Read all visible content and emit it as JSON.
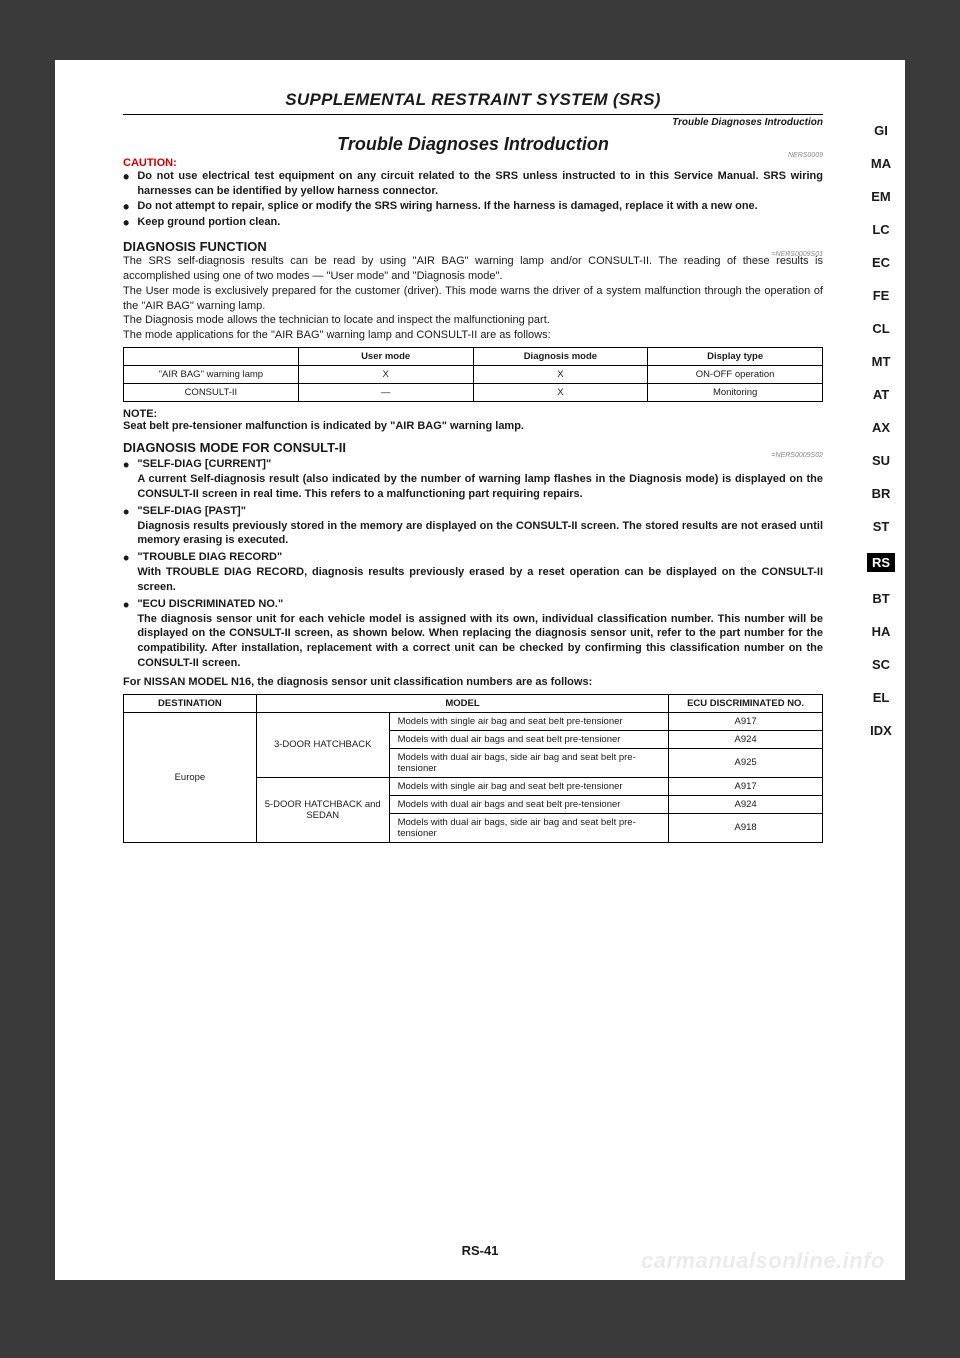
{
  "running_head": "SUPPLEMENTAL RESTRAINT SYSTEM (SRS)",
  "subhead": "Trouble Diagnoses Introduction",
  "section_title": "Trouble Diagnoses Introduction",
  "section_code": "NERS0009",
  "caution_label": "CAUTION:",
  "caution_bullets": [
    "Do not use electrical test equipment on any circuit related to the SRS unless instructed to in this Service Manual. SRS wiring harnesses can be identified by yellow harness connector.",
    "Do not attempt to repair, splice or modify the SRS wiring harness. If the harness is damaged, replace it with a new one.",
    "Keep ground portion clean."
  ],
  "diag_fn_head": "DIAGNOSIS FUNCTION",
  "diag_fn_code": "=NERS0009S01",
  "diag_fn_paras": [
    "The SRS self-diagnosis results can be read by using \"AIR BAG\" warning lamp and/or CONSULT-II. The reading of these results is accomplished using one of two modes — \"User mode\" and \"Diagnosis mode\".",
    "The User mode is exclusively prepared for the customer (driver). This mode warns the driver of a system malfunction through the operation of the \"AIR BAG\" warning lamp.",
    "The Diagnosis mode allows the technician to locate and inspect the malfunctioning part.",
    "The mode applications for the \"AIR BAG\" warning lamp and CONSULT-II are as follows:"
  ],
  "table1": {
    "headers": [
      "",
      "User mode",
      "Diagnosis mode",
      "Display type"
    ],
    "rows": [
      [
        "\"AIR BAG\" warning lamp",
        "X",
        "X",
        "ON-OFF operation"
      ],
      [
        "CONSULT-II",
        "—",
        "X",
        "Monitoring"
      ]
    ],
    "col_widths": [
      "25%",
      "25%",
      "25%",
      "25%"
    ]
  },
  "note_label": "NOTE:",
  "note_text": "Seat belt pre-tensioner malfunction is indicated by \"AIR BAG\" warning lamp.",
  "diag_mode_head": "DIAGNOSIS MODE FOR CONSULT-II",
  "diag_mode_code": "=NERS0009S02",
  "diag_items": [
    {
      "title": "\"SELF-DIAG [CURRENT]\"",
      "body": "A current Self-diagnosis result (also indicated by the number of warning lamp flashes in the Diagnosis mode) is displayed on the CONSULT-II screen in real time. This refers to a malfunctioning part requiring repairs."
    },
    {
      "title": "\"SELF-DIAG [PAST]\"",
      "body": "Diagnosis results previously stored in the memory are displayed on the CONSULT-II screen. The stored results are not erased until memory erasing is executed."
    },
    {
      "title": "\"TROUBLE DIAG RECORD\"",
      "body": "With TROUBLE DIAG RECORD, diagnosis results previously erased by a reset operation can be displayed on the CONSULT-II screen."
    },
    {
      "title": "\"ECU DISCRIMINATED NO.\"",
      "body": "The diagnosis sensor unit for each vehicle model is assigned with its own, individual classification number. This number will be displayed on the CONSULT-II screen, as shown below. When replacing the diagnosis sensor unit, refer to the part number for the compatibility. After installation, replacement with a correct unit can be checked by confirming this classification number on the CONSULT-II screen."
    }
  ],
  "follow_line": "For NISSAN MODEL N16, the diagnosis sensor unit classification numbers are as follows:",
  "table2": {
    "headers": [
      "DESTINATION",
      "MODEL",
      "ECU DISCRIMINATED NO."
    ],
    "dest": "Europe",
    "groups": [
      {
        "group": "3-DOOR HATCHBACK",
        "rows": [
          [
            "Models with single air bag and seat belt pre-tensioner",
            "A917"
          ],
          [
            "Models with dual air bags and seat belt pre-tensioner",
            "A924"
          ],
          [
            "Models with dual air bags, side air bag and seat belt pre-tensioner",
            "A925"
          ]
        ]
      },
      {
        "group": "5-DOOR HATCHBACK and SEDAN",
        "rows": [
          [
            "Models with single air bag and seat belt pre-tensioner",
            "A917"
          ],
          [
            "Models with dual air bags and seat belt pre-tensioner",
            "A924"
          ],
          [
            "Models with dual air bags, side air bag and seat belt pre-tensioner",
            "A918"
          ]
        ]
      }
    ],
    "col_widths": [
      "19%",
      "19%",
      "40%",
      "22%"
    ]
  },
  "page_num": "RS-41",
  "tabs": [
    "GI",
    "MA",
    "EM",
    "LC",
    "EC",
    "FE",
    "CL",
    "MT",
    "AT",
    "AX",
    "SU",
    "BR",
    "ST",
    "RS",
    "BT",
    "HA",
    "SC",
    "EL",
    "IDX"
  ],
  "active_tab_index": 13,
  "watermark": "carmanualsonline.info",
  "colors": {
    "caution": "#d00000",
    "page_bg": "#ffffff",
    "body_bg": "#3a3a3a",
    "text": "#1a1a1a"
  }
}
